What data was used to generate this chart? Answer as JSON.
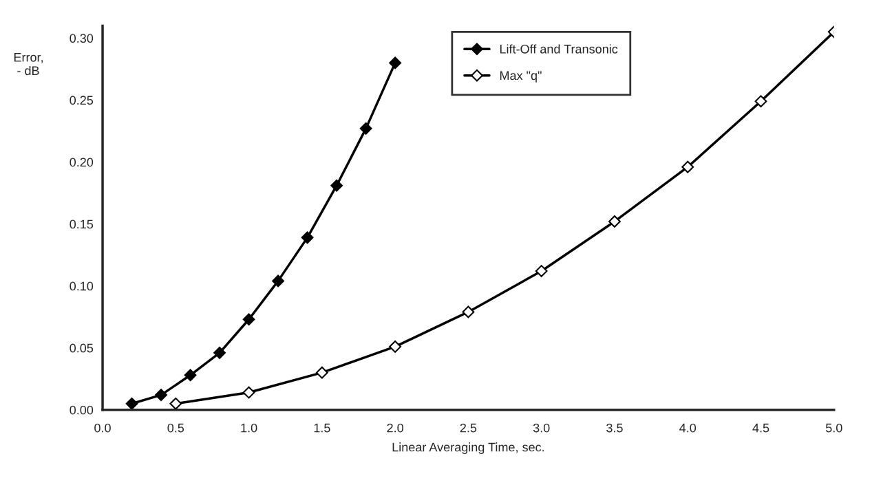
{
  "chart_data": {
    "type": "line",
    "xlabel": "Linear Averaging Time, sec.",
    "ylabel": "Error,\n - dB",
    "xlim": [
      0,
      5
    ],
    "ylim": [
      0,
      0.31
    ],
    "xticks": [
      {
        "value": 0,
        "label": "0.0"
      },
      0.5,
      {
        "value": 1,
        "label": "1.0"
      },
      1.5,
      {
        "value": 2,
        "label": "2.0"
      },
      2.5,
      {
        "value": 3,
        "label": "3.0"
      },
      3.5,
      {
        "value": 4,
        "label": "4.0"
      },
      4.5,
      {
        "value": 5,
        "label": "5.0"
      }
    ],
    "yticks": [
      {
        "value": 0,
        "label": "0.00"
      },
      0.05,
      {
        "value": 0.1,
        "label": "0.10"
      },
      0.15,
      {
        "value": 0.2,
        "label": "0.20"
      },
      0.25,
      {
        "value": 0.3,
        "label": "0.30"
      }
    ],
    "grid": false,
    "legend": "top right",
    "line_style": "solid",
    "series": [
      {
        "name": "Lift-Off and Transonic",
        "color": "#000000",
        "marker": "diamond",
        "x": [
          0.2,
          0.4,
          0.6,
          0.8,
          1.0,
          1.2,
          1.4,
          1.6,
          1.8,
          2.0
        ],
        "values": [
          0.005,
          0.012,
          0.028,
          0.046,
          0.073,
          0.104,
          0.139,
          0.181,
          0.227,
          0.28
        ]
      },
      {
        "name": "Max \"q\"",
        "color": "#000000",
        "marker": "diamond",
        "x": [
          0.5,
          1.0,
          1.5,
          2.0,
          2.5,
          3.0,
          3.5,
          4.0,
          4.5,
          5.0
        ],
        "values": [
          0.005,
          0.014,
          0.03,
          0.051,
          0.079,
          0.112,
          0.152,
          0.196,
          0.249,
          0.305
        ]
      }
    ]
  }
}
